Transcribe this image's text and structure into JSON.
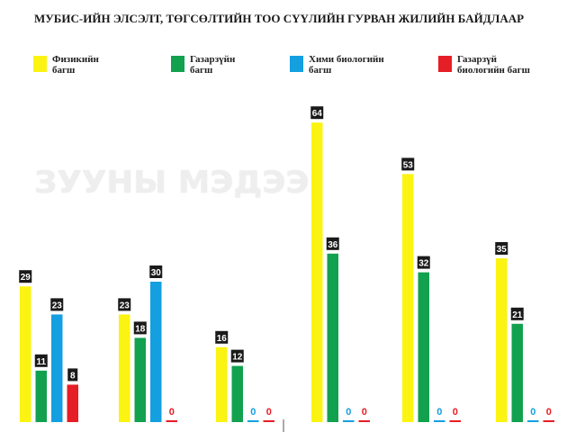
{
  "title": "МУБИС-ИЙН ЭЛСЭЛТ, ТӨГСӨЛТИЙН ТОО СҮҮЛИЙН ГУРВАН ЖИЛИЙН БАЙДЛААР",
  "watermark": "ЗУУНЫ МЭДЭЭ",
  "colors": {
    "physics": "#fbf311",
    "geography": "#11a14f",
    "chem_bio": "#139fe0",
    "geo_bio": "#e61e25",
    "label_bg": "#1a1a1a"
  },
  "chart_data": {
    "type": "bar",
    "title": "МУБИС-ИЙН ЭЛСЭЛТ, ТӨГСӨЛТИЙН ТОО СҮҮЛИЙН ГУРВАН ЖИЛИЙН БАЙДЛААР",
    "categories": [
      "",
      "",
      "",
      "",
      "",
      ""
    ],
    "series": [
      {
        "name": "Физикийн\nбагш",
        "color": "#fbf311",
        "values": [
          29,
          23,
          16,
          64,
          53,
          35
        ]
      },
      {
        "name": "Газарзүйн\nбагш",
        "color": "#11a14f",
        "values": [
          11,
          18,
          12,
          36,
          32,
          21
        ]
      },
      {
        "name": "Хими биологийн\nбагш",
        "color": "#139fe0",
        "values": [
          23,
          30,
          0,
          0,
          0,
          0
        ]
      },
      {
        "name": "Газарзүй\nбиологийн багш",
        "color": "#e61e25",
        "values": [
          8,
          0,
          0,
          0,
          0,
          0
        ]
      }
    ],
    "ylim": [
      0,
      70
    ],
    "grid": false,
    "legend_position": "top"
  }
}
